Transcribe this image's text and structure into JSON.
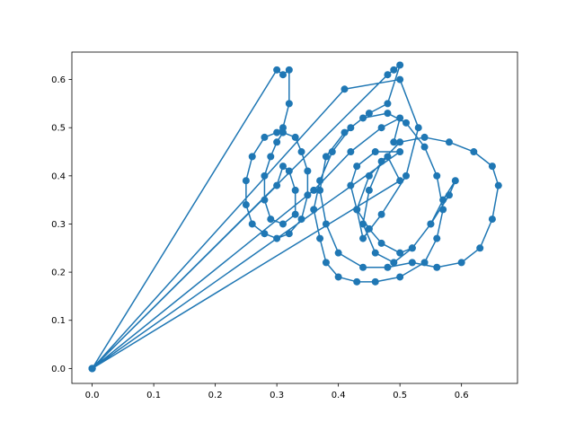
{
  "chart_data": {
    "type": "line",
    "title": "",
    "xlabel": "",
    "ylabel": "",
    "xlim": [
      -0.033,
      0.691
    ],
    "ylim": [
      -0.031,
      0.657
    ],
    "x_ticks": [
      0.0,
      0.1,
      0.2,
      0.3,
      0.4,
      0.5,
      0.6
    ],
    "x_tick_labels": [
      "0.0",
      "0.1",
      "0.2",
      "0.3",
      "0.4",
      "0.5",
      "0.6"
    ],
    "y_ticks": [
      0.0,
      0.1,
      0.2,
      0.3,
      0.4,
      0.5,
      0.6
    ],
    "y_tick_labels": [
      "0.0",
      "0.1",
      "0.2",
      "0.3",
      "0.4",
      "0.5",
      "0.6"
    ],
    "grid": false,
    "legend": "none",
    "marker": "circle",
    "color": "#1f77b4",
    "series": [
      {
        "x": [
          0.0,
          0.3,
          0.31,
          0.32,
          0.32,
          0.31,
          0.3,
          0.28,
          0.26,
          0.25,
          0.25,
          0.26,
          0.28,
          0.3,
          0.32,
          0.34,
          0.35,
          0.35,
          0.34,
          0.33,
          0.31,
          0.3,
          0.29,
          0.28,
          0.28,
          0.29,
          0.31,
          0.33,
          0.33,
          0.32,
          0.31,
          0.3,
          0.0,
          0.48,
          0.49,
          0.5,
          0.48,
          0.45,
          0.42,
          0.39,
          0.37,
          0.36,
          0.37,
          0.38,
          0.4,
          0.43,
          0.46,
          0.5,
          0.54,
          0.56,
          0.57,
          0.56,
          0.54,
          0.51,
          0.48,
          0.44,
          0.41,
          0.38,
          0.37,
          0.38,
          0.4,
          0.44,
          0.48,
          0.52,
          0.56,
          0.6,
          0.63,
          0.65,
          0.66,
          0.65,
          0.62,
          0.58,
          0.54,
          0.5,
          0.47,
          0.45,
          0.44,
          0.46,
          0.49,
          0.52,
          0.55,
          0.57,
          0.59,
          0.58,
          0.55,
          0.52,
          0.5,
          0.47,
          0.45,
          0.43,
          0.42,
          0.43,
          0.46,
          0.5,
          0.0,
          0.41,
          0.5,
          0.53,
          0.51,
          0.47,
          0.44,
          0.43,
          0.45,
          0.48,
          0.5,
          0.0,
          0.36,
          0.42,
          0.47,
          0.5,
          0.49
        ],
        "y": [
          0.0,
          0.62,
          0.61,
          0.62,
          0.55,
          0.5,
          0.49,
          0.48,
          0.44,
          0.39,
          0.34,
          0.3,
          0.28,
          0.27,
          0.28,
          0.31,
          0.36,
          0.41,
          0.45,
          0.48,
          0.49,
          0.47,
          0.44,
          0.4,
          0.35,
          0.31,
          0.3,
          0.32,
          0.37,
          0.41,
          0.42,
          0.38,
          0.0,
          0.61,
          0.62,
          0.63,
          0.55,
          0.53,
          0.5,
          0.45,
          0.39,
          0.33,
          0.27,
          0.22,
          0.19,
          0.18,
          0.18,
          0.19,
          0.22,
          0.27,
          0.33,
          0.4,
          0.46,
          0.51,
          0.53,
          0.52,
          0.49,
          0.44,
          0.37,
          0.3,
          0.24,
          0.21,
          0.21,
          0.22,
          0.21,
          0.22,
          0.25,
          0.31,
          0.38,
          0.42,
          0.45,
          0.47,
          0.48,
          0.47,
          0.43,
          0.37,
          0.3,
          0.24,
          0.22,
          0.25,
          0.3,
          0.35,
          0.39,
          0.36,
          0.3,
          0.25,
          0.24,
          0.26,
          0.29,
          0.33,
          0.38,
          0.42,
          0.45,
          0.45,
          0.0,
          0.58,
          0.6,
          0.5,
          0.4,
          0.32,
          0.27,
          0.33,
          0.4,
          0.44,
          0.39,
          0.0,
          0.37,
          0.45,
          0.5,
          0.52,
          0.47
        ]
      }
    ]
  }
}
